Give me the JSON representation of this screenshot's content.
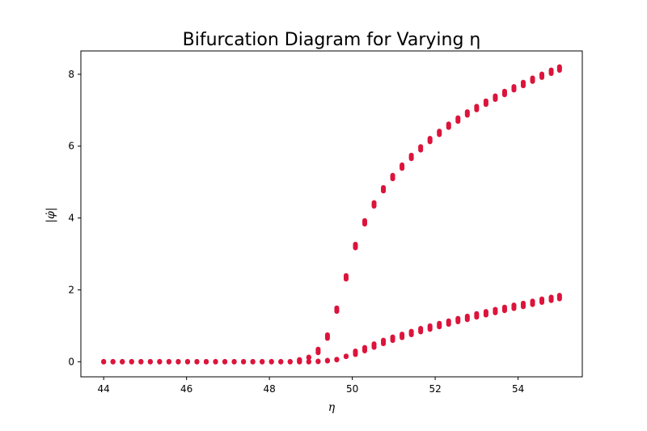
{
  "chart_data": {
    "type": "scatter",
    "title": "Bifurcation Diagram for Varying η",
    "xlabel": "η",
    "ylabel": "|φ̇|",
    "xlim": [
      43.45,
      55.55
    ],
    "ylim": [
      -0.42,
      8.65
    ],
    "x_ticks": [
      44,
      46,
      48,
      50,
      52,
      54
    ],
    "y_ticks": [
      0,
      2,
      4,
      6,
      8
    ],
    "grid": false,
    "legend": "none",
    "marker_color": "#dc143c",
    "eta_start": 44,
    "eta_end": 55,
    "eta_step": 0.225,
    "lower_branch": [
      [
        44.0,
        0.0
      ],
      [
        44.225,
        0.0
      ],
      [
        44.45,
        0.0
      ],
      [
        44.675,
        0.0
      ],
      [
        44.9,
        0.0
      ],
      [
        45.125,
        0.0
      ],
      [
        45.35,
        0.0
      ],
      [
        45.575,
        0.0
      ],
      [
        45.8,
        0.0
      ],
      [
        46.025,
        0.0
      ],
      [
        46.25,
        0.0
      ],
      [
        46.475,
        0.0
      ],
      [
        46.7,
        0.0
      ],
      [
        46.925,
        0.0
      ],
      [
        47.15,
        0.0
      ],
      [
        47.375,
        0.0
      ],
      [
        47.6,
        0.0
      ],
      [
        47.825,
        0.0
      ],
      [
        48.05,
        0.0
      ],
      [
        48.275,
        0.0
      ],
      [
        48.5,
        0.0
      ],
      [
        48.725,
        0.0
      ],
      [
        48.95,
        0.0
      ],
      [
        49.175,
        0.01
      ],
      [
        49.4,
        0.03
      ],
      [
        49.625,
        0.06
      ],
      [
        49.85,
        0.15
      ],
      [
        50.075,
        0.25
      ],
      [
        50.3,
        0.35
      ],
      [
        50.525,
        0.45
      ],
      [
        50.75,
        0.55
      ],
      [
        50.975,
        0.64
      ],
      [
        51.2,
        0.72
      ],
      [
        51.425,
        0.8
      ],
      [
        51.65,
        0.88
      ],
      [
        51.875,
        0.95
      ],
      [
        52.1,
        1.02
      ],
      [
        52.325,
        1.09
      ],
      [
        52.55,
        1.16
      ],
      [
        52.775,
        1.22
      ],
      [
        53.0,
        1.29
      ],
      [
        53.225,
        1.35
      ],
      [
        53.45,
        1.41
      ],
      [
        53.675,
        1.47
      ],
      [
        53.9,
        1.53
      ],
      [
        54.125,
        1.58
      ],
      [
        54.35,
        1.64
      ],
      [
        54.575,
        1.7
      ],
      [
        54.8,
        1.75
      ],
      [
        55.0,
        1.8
      ]
    ],
    "upper_branch": [
      [
        48.725,
        0.05
      ],
      [
        48.95,
        0.12
      ],
      [
        49.175,
        0.3
      ],
      [
        49.4,
        0.7
      ],
      [
        49.625,
        1.45
      ],
      [
        49.85,
        2.35
      ],
      [
        50.075,
        3.22
      ],
      [
        50.3,
        3.88
      ],
      [
        50.525,
        4.38
      ],
      [
        50.75,
        4.8
      ],
      [
        50.975,
        5.14
      ],
      [
        51.2,
        5.43
      ],
      [
        51.425,
        5.7
      ],
      [
        51.65,
        5.94
      ],
      [
        51.875,
        6.17
      ],
      [
        52.1,
        6.37
      ],
      [
        52.325,
        6.57
      ],
      [
        52.55,
        6.74
      ],
      [
        52.775,
        6.91
      ],
      [
        53.0,
        7.06
      ],
      [
        53.225,
        7.21
      ],
      [
        53.45,
        7.35
      ],
      [
        53.675,
        7.48
      ],
      [
        53.9,
        7.61
      ],
      [
        54.125,
        7.73
      ],
      [
        54.35,
        7.85
      ],
      [
        54.575,
        7.96
      ],
      [
        54.8,
        8.07
      ],
      [
        55.0,
        8.16
      ]
    ],
    "spread_per_column": 0.1
  }
}
